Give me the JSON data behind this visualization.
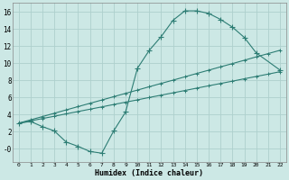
{
  "xlabel": "Humidex (Indice chaleur)",
  "bg_color": "#cce8e5",
  "grid_color": "#aed0cd",
  "line_color": "#2d7d74",
  "xlim": [
    -0.5,
    22.5
  ],
  "ylim": [
    -1.5,
    17.0
  ],
  "xticks": [
    0,
    1,
    2,
    3,
    4,
    5,
    6,
    7,
    8,
    9,
    10,
    11,
    12,
    13,
    14,
    15,
    16,
    17,
    18,
    19,
    20,
    21,
    22
  ],
  "yticks": [
    0,
    2,
    4,
    6,
    8,
    10,
    12,
    14,
    16
  ],
  "ytick_labels": [
    "-0",
    "2",
    "4",
    "6",
    "8",
    "10",
    "12",
    "14",
    "16"
  ],
  "curve1_x": [
    0,
    1,
    2,
    3,
    4,
    5,
    6,
    7,
    8,
    9,
    10,
    11,
    12,
    13,
    14,
    15,
    16,
    17,
    18,
    19,
    20,
    22
  ],
  "curve1_y": [
    3.0,
    3.2,
    2.6,
    2.1,
    0.8,
    0.3,
    -0.3,
    -0.5,
    2.1,
    4.3,
    9.4,
    11.5,
    13.1,
    15.0,
    16.1,
    16.1,
    15.8,
    15.1,
    14.2,
    13.0,
    11.2,
    9.2
  ],
  "curve2_x": [
    0,
    1,
    2,
    3,
    4,
    5,
    6,
    7,
    8,
    9,
    10,
    11,
    12,
    13,
    14,
    15,
    16,
    17,
    18,
    19,
    20,
    21,
    22
  ],
  "curve2_y": [
    3.0,
    3.27,
    3.54,
    3.81,
    4.09,
    4.36,
    4.63,
    4.9,
    5.18,
    5.45,
    5.72,
    6.0,
    6.27,
    6.54,
    6.81,
    7.09,
    7.36,
    7.63,
    7.9,
    8.18,
    8.45,
    8.72,
    9.0
  ],
  "curve3_x": [
    0,
    1,
    2,
    3,
    4,
    5,
    6,
    7,
    8,
    9,
    10,
    11,
    12,
    13,
    14,
    15,
    16,
    17,
    18,
    19,
    20,
    21,
    22
  ],
  "curve3_y": [
    3.0,
    3.39,
    3.77,
    4.16,
    4.55,
    4.93,
    5.32,
    5.7,
    6.09,
    6.48,
    6.86,
    7.25,
    7.64,
    8.02,
    8.41,
    8.8,
    9.18,
    9.57,
    9.95,
    10.34,
    10.73,
    11.11,
    11.5
  ],
  "markersize": 2.5
}
